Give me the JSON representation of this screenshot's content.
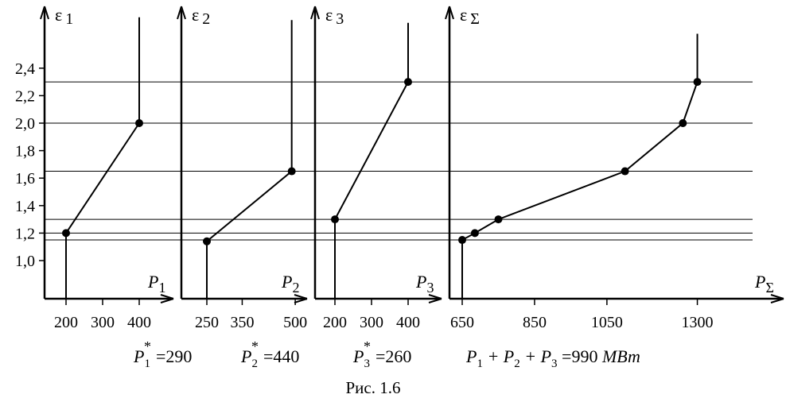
{
  "caption": "Рис. 1.6",
  "equations": {
    "p1": {
      "sym": "P",
      "sub": "1",
      "sup": "*",
      "rhs": "=290"
    },
    "p2": {
      "sym": "P",
      "sub": "2",
      "sup": "*",
      "rhs": "=440"
    },
    "p3": {
      "sym": "P",
      "sub": "3",
      "sup": "*",
      "rhs": "=260"
    },
    "sum": {
      "text1": "P",
      "s1": "1",
      "plus1": " + P",
      "s2": "2",
      "plus2": " + P",
      "s3": "3",
      "rhs": " =990 ",
      "unit": "МВт"
    }
  },
  "y_ticks": [
    "2,4",
    "2,2",
    "2,0",
    "1,8",
    "1,6",
    "1,4",
    "1,2",
    "1,0"
  ],
  "horizontal_levels": [
    2.3,
    2.0,
    1.65,
    1.3,
    1.2,
    1.15
  ],
  "chart_data": [
    {
      "type": "line",
      "ylabel": "ε",
      "ylabel_sub": "1",
      "xlabel": "P",
      "xlabel_sub": "1",
      "x_ticks": [
        "200",
        "300",
        "400"
      ],
      "x_tick_values": [
        200,
        300,
        400
      ],
      "series": [
        {
          "x": [
            200,
            200,
            400,
            400
          ],
          "y": [
            0.72,
            1.2,
            2.0,
            2.77
          ],
          "markers": [
            1,
            2
          ]
        }
      ]
    },
    {
      "type": "line",
      "ylabel": "ε",
      "ylabel_sub": "2",
      "xlabel": "P",
      "xlabel_sub": "2",
      "x_ticks": [
        "250",
        "350",
        "500"
      ],
      "x_tick_values": [
        250,
        350,
        500
      ],
      "series": [
        {
          "x": [
            250,
            250,
            490,
            490
          ],
          "y": [
            0.72,
            1.14,
            1.65,
            2.75
          ],
          "markers": [
            1,
            2
          ]
        }
      ]
    },
    {
      "type": "line",
      "ylabel": "ε",
      "ylabel_sub": "3",
      "xlabel": "P",
      "xlabel_sub": "3",
      "x_ticks": [
        "200",
        "300",
        "400"
      ],
      "x_tick_values": [
        200,
        300,
        400
      ],
      "series": [
        {
          "x": [
            200,
            200,
            400,
            400
          ],
          "y": [
            0.72,
            1.3,
            2.3,
            2.73
          ],
          "markers": [
            1,
            2
          ]
        }
      ]
    },
    {
      "type": "line",
      "ylabel": "ε",
      "ylabel_sub": "Σ",
      "xlabel": "P",
      "xlabel_sub": "Σ",
      "x_ticks": [
        "650",
        "850",
        "1050",
        "1300"
      ],
      "x_tick_values": [
        650,
        850,
        1050,
        1300
      ],
      "series": [
        {
          "x": [
            650,
            650,
            685,
            750,
            1100,
            1260,
            1300,
            1300
          ],
          "y": [
            0.72,
            1.15,
            1.2,
            1.3,
            1.65,
            2.0,
            2.3,
            2.65
          ],
          "markers": [
            1,
            2,
            3,
            4,
            5,
            6
          ]
        }
      ]
    }
  ]
}
